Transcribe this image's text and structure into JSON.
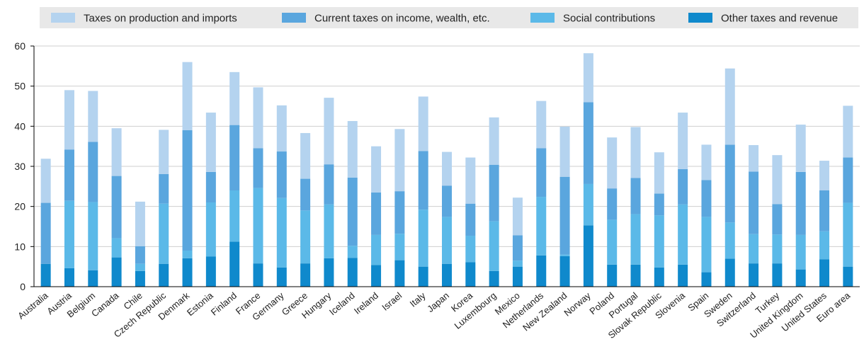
{
  "chart_data": {
    "type": "bar",
    "stacked": true,
    "title": "",
    "xlabel": "",
    "ylabel": "",
    "ylim": [
      0,
      60
    ],
    "yticks": [
      0,
      10,
      20,
      30,
      40,
      50,
      60
    ],
    "grid": true,
    "legend_position": "top",
    "categories": [
      "Australia",
      "Austria",
      "Belgium",
      "Canada",
      "Chile",
      "Czech Republic",
      "Denmark",
      "Estonia",
      "Finland",
      "France",
      "Germany",
      "Greece",
      "Hungary",
      "Iceland",
      "Ireland",
      "Israel",
      "Italy",
      "Japan",
      "Korea",
      "Luxembourg",
      "Mexico",
      "Netherlands",
      "New Zealand",
      "Norway",
      "Poland",
      "Portugal",
      "Slovak Republic",
      "Slovenia",
      "Spain",
      "Sweden",
      "Switzerland",
      "Turkey",
      "United Kingdom",
      "United States",
      "Euro area"
    ],
    "series": [
      {
        "name": "Other taxes and revenue",
        "color": "#0f89cc",
        "values": [
          5.7,
          4.6,
          4.1,
          7.3,
          3.9,
          5.7,
          7.1,
          7.5,
          11.2,
          5.8,
          4.8,
          5.8,
          7.1,
          7.2,
          5.4,
          6.6,
          5.0,
          5.7,
          6.1,
          3.9,
          5.0,
          7.8,
          7.6,
          15.3,
          5.5,
          5.5,
          4.8,
          5.5,
          3.6,
          7.0,
          5.8,
          5.8,
          4.3,
          6.8,
          5.0
        ]
      },
      {
        "name": "Social contributions",
        "color": "#5bb9e8",
        "values": [
          0.0,
          16.8,
          17.0,
          4.8,
          1.8,
          15.0,
          1.9,
          13.5,
          12.8,
          18.8,
          17.3,
          13.2,
          13.4,
          3.0,
          7.5,
          6.6,
          14.2,
          11.7,
          6.6,
          12.4,
          1.5,
          14.6,
          0.4,
          10.3,
          11.2,
          12.6,
          13.0,
          15.0,
          13.8,
          9.0,
          7.3,
          7.2,
          8.6,
          7.0,
          15.9
        ]
      },
      {
        "name": "Current taxes on income, wealth, etc.",
        "color": "#5aa6de",
        "values": [
          15.2,
          12.8,
          15.0,
          15.5,
          4.4,
          7.4,
          30.0,
          7.6,
          16.3,
          9.9,
          11.6,
          7.9,
          10.0,
          17.0,
          10.6,
          10.6,
          14.6,
          7.8,
          8.0,
          14.1,
          6.3,
          12.1,
          19.4,
          20.4,
          7.8,
          9.0,
          5.4,
          8.8,
          9.2,
          19.4,
          15.6,
          7.6,
          15.7,
          10.2,
          11.3
        ]
      },
      {
        "name": "Taxes on production and imports",
        "color": "#b4d3ef",
        "values": [
          11.0,
          14.8,
          12.7,
          11.9,
          11.1,
          11.0,
          17.0,
          14.8,
          13.2,
          15.2,
          11.5,
          11.4,
          16.6,
          14.1,
          11.5,
          15.5,
          13.6,
          8.4,
          11.5,
          11.8,
          9.4,
          11.8,
          12.5,
          12.2,
          12.7,
          12.7,
          10.3,
          14.1,
          8.8,
          19.0,
          6.6,
          12.2,
          11.8,
          7.4,
          12.9
        ]
      }
    ]
  }
}
